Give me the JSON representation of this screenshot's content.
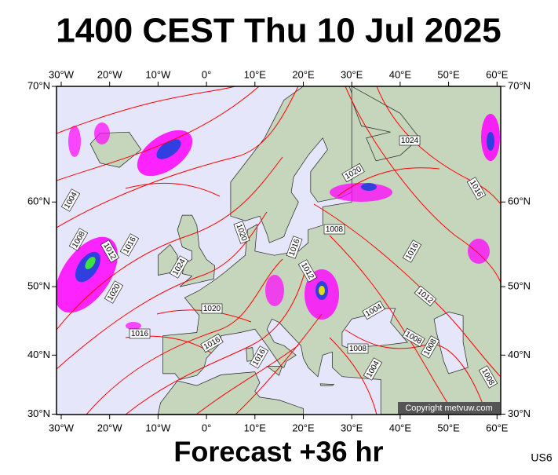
{
  "header": {
    "title": "1400 CEST Thu 10 Jul 2025"
  },
  "map": {
    "lon_ticks": [
      {
        "value": -30,
        "label": "30°W"
      },
      {
        "value": -20,
        "label": "20°W"
      },
      {
        "value": -10,
        "label": "10°W"
      },
      {
        "value": 0,
        "label": "0°"
      },
      {
        "value": 10,
        "label": "10°E"
      },
      {
        "value": 20,
        "label": "20°E"
      },
      {
        "value": 30,
        "label": "30°E"
      },
      {
        "value": 40,
        "label": "40°E"
      },
      {
        "value": 50,
        "label": "50°E"
      },
      {
        "value": 60,
        "label": "60°E"
      }
    ],
    "lat_ticks": [
      {
        "value": 30,
        "label": "30°N"
      },
      {
        "value": 40,
        "label": "40°N"
      },
      {
        "value": 50,
        "label": "50°N"
      },
      {
        "value": 60,
        "label": "60°N"
      },
      {
        "value": 70,
        "label": "70°N"
      }
    ],
    "isobar_labels": [
      1024,
      1020,
      1016,
      1004,
      1008,
      1012,
      1016,
      1020,
      1024,
      1020,
      1016,
      1016,
      1016,
      1020,
      1016,
      1012,
      1008,
      1016,
      1012,
      1004,
      1008,
      1008,
      1008,
      1004,
      1008
    ],
    "copyright": "Copyright metvuw.com"
  },
  "footer": {
    "forecast": "Forecast +36 hr",
    "code": "US6"
  }
}
